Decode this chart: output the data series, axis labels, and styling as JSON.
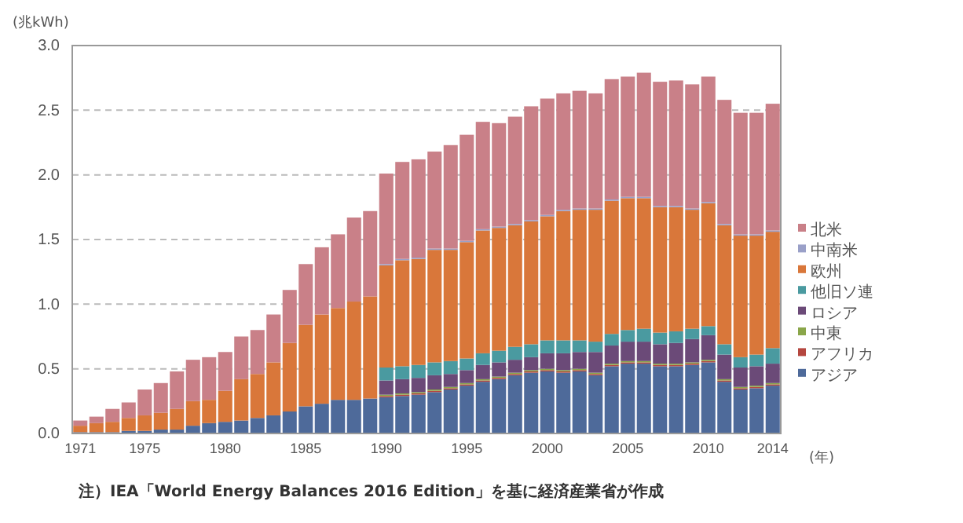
{
  "chart_data": {
    "type": "bar",
    "stacked": true,
    "ylabel": "(兆kWh)",
    "xlabel": "(年)",
    "categories": [
      "1971",
      null,
      null,
      null,
      "1975",
      null,
      null,
      null,
      null,
      "1980",
      null,
      null,
      null,
      null,
      "1985",
      null,
      null,
      null,
      null,
      "1990",
      null,
      null,
      null,
      null,
      "1995",
      null,
      null,
      null,
      null,
      "2000",
      null,
      null,
      null,
      null,
      "2005",
      null,
      null,
      null,
      null,
      "2010",
      null,
      null,
      null,
      "2014"
    ],
    "ylim": [
      0,
      3
    ],
    "yticks": [
      {
        "value": 0,
        "label": "0.0"
      },
      {
        "value": 0.5,
        "label": "0.5"
      },
      {
        "value": 1,
        "label": "1.0"
      },
      {
        "value": 1.5,
        "label": "1.5"
      },
      {
        "value": 2,
        "label": "2.0"
      },
      {
        "value": 2.5,
        "label": "2.5"
      },
      {
        "value": 3,
        "label": "3.0"
      }
    ],
    "grid": "y",
    "legend": "right",
    "annotations": [
      "注）IEA「World Energy Balances 2016 Edition」を基に経済産業省が作成"
    ],
    "series": [
      {
        "name": "アジア",
        "color": "#4e6a9a",
        "values": [
          0.01,
          0.01,
          0.01,
          0.02,
          0.02,
          0.03,
          0.03,
          0.06,
          0.08,
          0.09,
          0.1,
          0.12,
          0.14,
          0.17,
          0.21,
          0.23,
          0.26,
          0.26,
          0.27,
          0.28,
          0.29,
          0.3,
          0.32,
          0.34,
          0.37,
          0.4,
          0.42,
          0.45,
          0.47,
          0.48,
          0.47,
          0.48,
          0.45,
          0.52,
          0.54,
          0.54,
          0.52,
          0.52,
          0.53,
          0.55,
          0.4,
          0.34,
          0.35,
          0.37
        ]
      },
      {
        "name": "アフリカ",
        "color": "#b5473f",
        "values": [
          0,
          0,
          0,
          0,
          0,
          0,
          0,
          0,
          0,
          0,
          0,
          0,
          0,
          0,
          0,
          0,
          0,
          0,
          0,
          0.01,
          0.01,
          0.01,
          0.01,
          0.01,
          0.01,
          0.01,
          0.01,
          0.01,
          0.01,
          0.01,
          0.01,
          0.01,
          0.01,
          0.01,
          0.01,
          0.01,
          0.01,
          0.01,
          0.01,
          0.01,
          0.01,
          0.01,
          0.01,
          0.01
        ]
      },
      {
        "name": "中東",
        "color": "#8aa64a",
        "values": [
          0,
          0,
          0,
          0,
          0,
          0,
          0,
          0,
          0,
          0,
          0,
          0,
          0,
          0,
          0,
          0,
          0,
          0,
          0,
          0.01,
          0.01,
          0.01,
          0.01,
          0.01,
          0.01,
          0.01,
          0.01,
          0.01,
          0.01,
          0.01,
          0.01,
          0.01,
          0.01,
          0.01,
          0.01,
          0.01,
          0.01,
          0.01,
          0.01,
          0.01,
          0.01,
          0.01,
          0.01,
          0.01
        ]
      },
      {
        "name": "ロシア",
        "color": "#6b4a78",
        "values": [
          0,
          0,
          0,
          0,
          0,
          0,
          0,
          0,
          0,
          0,
          0,
          0,
          0,
          0,
          0,
          0,
          0,
          0,
          0,
          0.11,
          0.11,
          0.11,
          0.11,
          0.1,
          0.1,
          0.11,
          0.11,
          0.1,
          0.1,
          0.12,
          0.13,
          0.13,
          0.16,
          0.14,
          0.15,
          0.15,
          0.15,
          0.16,
          0.18,
          0.19,
          0.19,
          0.15,
          0.15,
          0.15
        ]
      },
      {
        "name": "他旧ソ連",
        "color": "#4a9aa0",
        "values": [
          0,
          0,
          0,
          0,
          0,
          0,
          0,
          0,
          0,
          0,
          0,
          0,
          0,
          0,
          0,
          0,
          0,
          0,
          0,
          0.1,
          0.1,
          0.1,
          0.1,
          0.1,
          0.09,
          0.09,
          0.09,
          0.1,
          0.1,
          0.1,
          0.1,
          0.09,
          0.08,
          0.09,
          0.09,
          0.1,
          0.09,
          0.09,
          0.08,
          0.07,
          0.08,
          0.08,
          0.09,
          0.12
        ]
      },
      {
        "name": "欧州",
        "color": "#d9773a",
        "values": [
          0.05,
          0.07,
          0.08,
          0.1,
          0.12,
          0.13,
          0.16,
          0.19,
          0.18,
          0.24,
          0.32,
          0.34,
          0.41,
          0.53,
          0.63,
          0.69,
          0.71,
          0.76,
          0.79,
          0.79,
          0.82,
          0.82,
          0.87,
          0.86,
          0.9,
          0.95,
          0.95,
          0.94,
          0.95,
          0.96,
          1.0,
          1.01,
          1.02,
          1.03,
          1.02,
          1.01,
          0.97,
          0.96,
          0.92,
          0.95,
          0.92,
          0.94,
          0.92,
          0.9
        ]
      },
      {
        "name": "中南米",
        "color": "#9aa0c8",
        "values": [
          0,
          0,
          0,
          0,
          0,
          0,
          0,
          0,
          0,
          0,
          0,
          0,
          0,
          0,
          0,
          0,
          0,
          0,
          0,
          0.01,
          0.01,
          0.01,
          0.01,
          0.01,
          0.01,
          0.01,
          0.01,
          0.01,
          0.01,
          0.01,
          0.01,
          0.01,
          0.01,
          0.01,
          0.01,
          0.01,
          0.01,
          0.01,
          0.01,
          0.01,
          0.01,
          0.01,
          0.01,
          0.01
        ]
      },
      {
        "name": "北米",
        "color": "#c98088",
        "values": [
          0.04,
          0.05,
          0.1,
          0.12,
          0.2,
          0.23,
          0.29,
          0.32,
          0.33,
          0.3,
          0.33,
          0.34,
          0.37,
          0.41,
          0.47,
          0.52,
          0.57,
          0.65,
          0.66,
          0.7,
          0.75,
          0.76,
          0.75,
          0.8,
          0.82,
          0.83,
          0.8,
          0.83,
          0.88,
          0.9,
          0.9,
          0.91,
          0.89,
          0.93,
          0.93,
          0.96,
          0.96,
          0.97,
          0.96,
          0.97,
          0.96,
          0.94,
          0.94,
          0.98
        ]
      }
    ]
  }
}
